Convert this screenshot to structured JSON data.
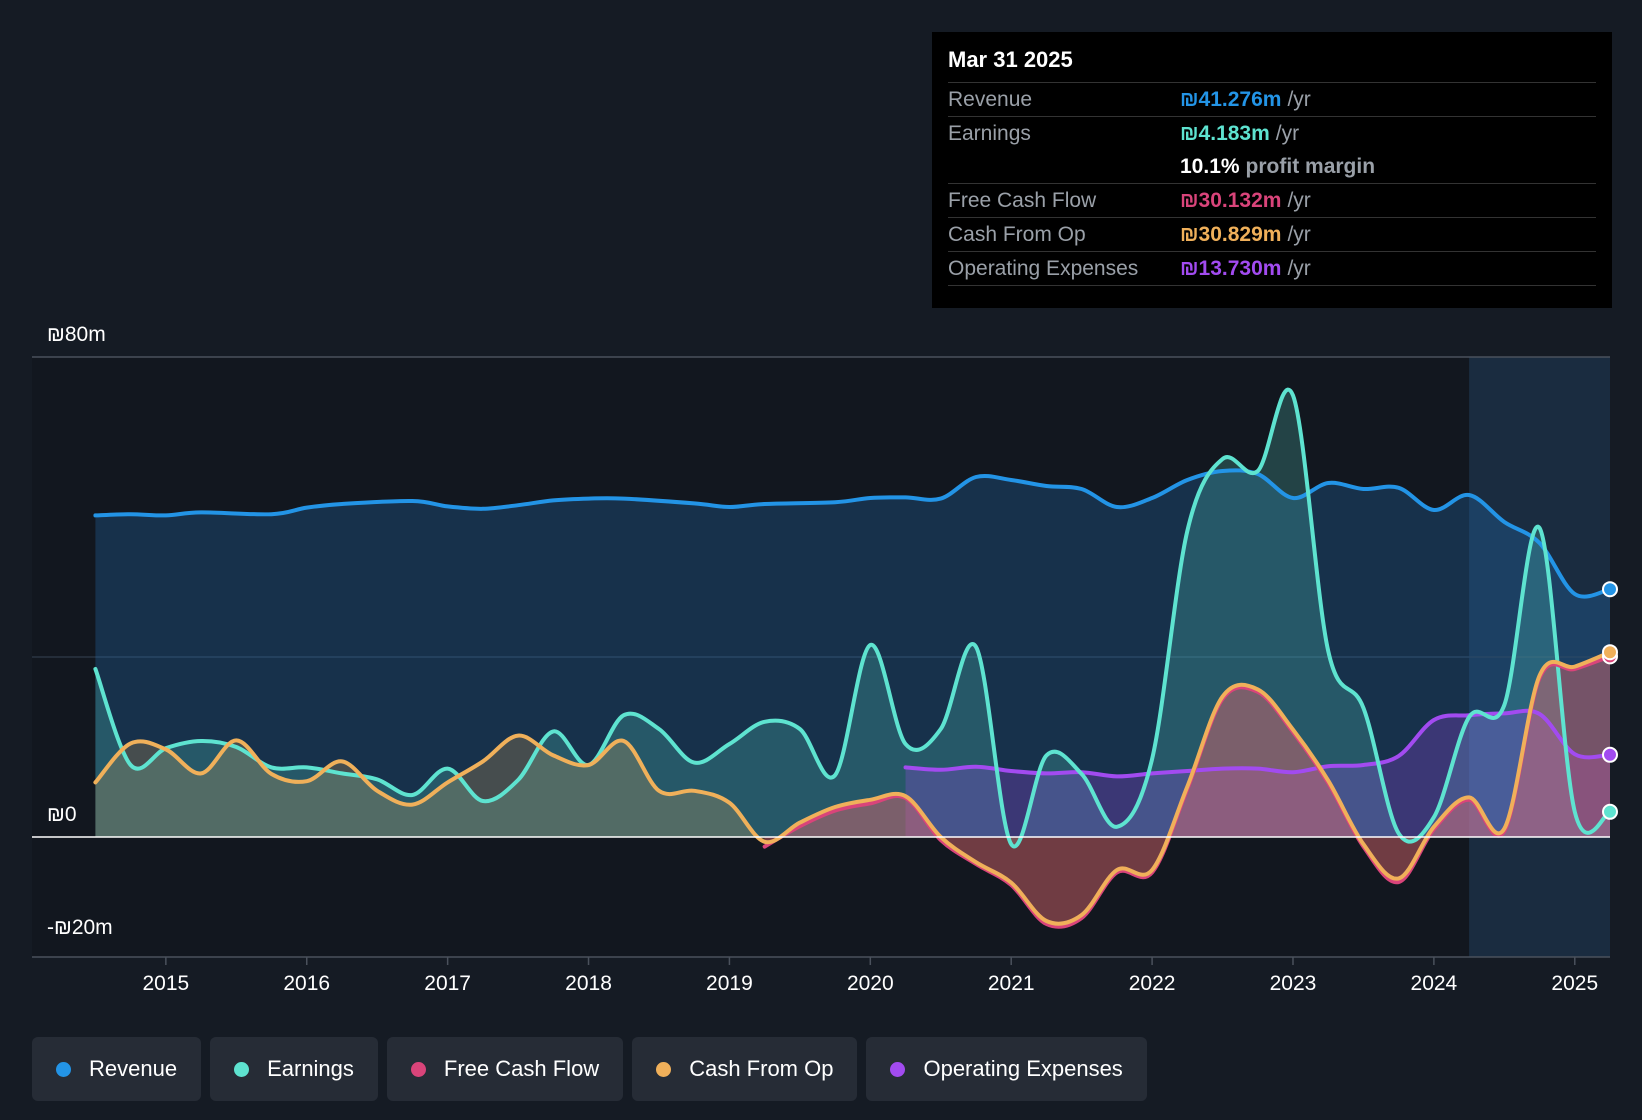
{
  "tooltip": {
    "date": "Mar 31 2025",
    "revenue_label": "Revenue",
    "revenue_value": "₪41.276m",
    "earnings_label": "Earnings",
    "earnings_value": "₪4.183m",
    "margin_value": "10.1%",
    "margin_label": "profit margin",
    "fcf_label": "Free Cash Flow",
    "fcf_value": "₪30.132m",
    "cfo_label": "Cash From Op",
    "cfo_value": "₪30.829m",
    "opex_label": "Operating Expenses",
    "opex_value": "₪13.730m",
    "unit": "/yr"
  },
  "legend": {
    "revenue": "Revenue",
    "earnings": "Earnings",
    "fcf": "Free Cash Flow",
    "cfo": "Cash From Op",
    "opex": "Operating Expenses"
  },
  "colors": {
    "revenue": "#2394e6",
    "earnings": "#5ee3d0",
    "fcf": "#d9447a",
    "cfo": "#f0b05a",
    "opex": "#a24bf0"
  },
  "chart_data": {
    "type": "line",
    "title": "",
    "ylim": [
      -20,
      80
    ],
    "y_tick_labels": [
      "₪80m",
      "₪0",
      "-₪20m"
    ],
    "x_tick_labels": [
      "2015",
      "2016",
      "2017",
      "2018",
      "2019",
      "2020",
      "2021",
      "2022",
      "2023",
      "2024",
      "2025"
    ],
    "xlim": [
      2014.05,
      2025.25
    ],
    "forecast_start": 2024.25,
    "series": [
      {
        "key": "revenue",
        "name": "Revenue",
        "color": "#2394e6",
        "points": [
          [
            2014.5,
            53.6
          ],
          [
            2014.75,
            53.8
          ],
          [
            2015.0,
            53.6
          ],
          [
            2015.25,
            54.1
          ],
          [
            2015.75,
            53.8
          ],
          [
            2016.0,
            54.9
          ],
          [
            2016.25,
            55.5
          ],
          [
            2016.75,
            56
          ],
          [
            2017.0,
            55.1
          ],
          [
            2017.25,
            54.7
          ],
          [
            2017.5,
            55.3
          ],
          [
            2017.75,
            56.1
          ],
          [
            2018.0,
            56.4
          ],
          [
            2018.25,
            56.4
          ],
          [
            2018.75,
            55.6
          ],
          [
            2019.0,
            55
          ],
          [
            2019.25,
            55.5
          ],
          [
            2019.75,
            55.8
          ],
          [
            2020.0,
            56.5
          ],
          [
            2020.25,
            56.6
          ],
          [
            2020.5,
            56.4
          ],
          [
            2020.75,
            60
          ],
          [
            2021.0,
            59.5
          ],
          [
            2021.25,
            58.5
          ],
          [
            2021.5,
            58
          ],
          [
            2021.75,
            55
          ],
          [
            2022.0,
            56.5
          ],
          [
            2022.25,
            59.5
          ],
          [
            2022.5,
            61
          ],
          [
            2022.75,
            60.5
          ],
          [
            2023.0,
            56.5
          ],
          [
            2023.25,
            59
          ],
          [
            2023.5,
            58
          ],
          [
            2023.75,
            58.2
          ],
          [
            2024.0,
            54.5
          ],
          [
            2024.25,
            57
          ],
          [
            2024.5,
            52.5
          ],
          [
            2024.75,
            49
          ],
          [
            2025.0,
            40.5
          ],
          [
            2025.25,
            41.3
          ]
        ]
      },
      {
        "key": "earnings",
        "name": "Earnings",
        "color": "#5ee3d0",
        "points": [
          [
            2014.5,
            28
          ],
          [
            2014.75,
            12
          ],
          [
            2015.0,
            14.8
          ],
          [
            2015.25,
            16
          ],
          [
            2015.5,
            15
          ],
          [
            2015.75,
            11.6
          ],
          [
            2016.0,
            11.6
          ],
          [
            2016.25,
            10.6
          ],
          [
            2016.5,
            9.6
          ],
          [
            2016.75,
            7
          ],
          [
            2017.0,
            11.4
          ],
          [
            2017.25,
            6
          ],
          [
            2017.5,
            9.5
          ],
          [
            2017.75,
            17.6
          ],
          [
            2018.0,
            12
          ],
          [
            2018.25,
            20.3
          ],
          [
            2018.5,
            18
          ],
          [
            2018.75,
            12.4
          ],
          [
            2019.0,
            15.5
          ],
          [
            2019.25,
            19.2
          ],
          [
            2019.5,
            18
          ],
          [
            2019.75,
            10.3
          ],
          [
            2020.0,
            32
          ],
          [
            2020.25,
            15.5
          ],
          [
            2020.5,
            18
          ],
          [
            2020.75,
            31.7
          ],
          [
            2021.0,
            -1.2
          ],
          [
            2021.25,
            13.6
          ],
          [
            2021.5,
            10.5
          ],
          [
            2021.75,
            1.7
          ],
          [
            2022.0,
            13
          ],
          [
            2022.25,
            51
          ],
          [
            2022.5,
            63
          ],
          [
            2022.75,
            61
          ],
          [
            2023.0,
            73.6
          ],
          [
            2023.25,
            31
          ],
          [
            2023.5,
            21.5
          ],
          [
            2023.75,
            0.6
          ],
          [
            2024.0,
            3.3
          ],
          [
            2024.25,
            20
          ],
          [
            2024.5,
            22
          ],
          [
            2024.75,
            51.5
          ],
          [
            2025.0,
            4.2
          ],
          [
            2025.25,
            4.2
          ]
        ]
      },
      {
        "key": "fcf",
        "name": "Free Cash Flow",
        "color": "#d9447a",
        "points": [
          [
            2019.25,
            -1.6
          ],
          [
            2019.5,
            1.8
          ],
          [
            2019.75,
            4.4
          ],
          [
            2020.0,
            5.6
          ],
          [
            2020.25,
            6.5
          ],
          [
            2020.5,
            -0.5
          ],
          [
            2020.75,
            -4.5
          ],
          [
            2021.0,
            -8
          ],
          [
            2021.25,
            -14.5
          ],
          [
            2021.5,
            -13.5
          ],
          [
            2021.75,
            -5.9
          ],
          [
            2022.0,
            -5.9
          ],
          [
            2022.25,
            8
          ],
          [
            2022.5,
            23
          ],
          [
            2022.75,
            24.2
          ],
          [
            2023.0,
            17.5
          ],
          [
            2023.25,
            9
          ],
          [
            2023.5,
            -1.6
          ],
          [
            2023.75,
            -7.5
          ],
          [
            2024.0,
            1.3
          ],
          [
            2024.25,
            6.2
          ],
          [
            2024.5,
            1
          ],
          [
            2024.75,
            26.5
          ],
          [
            2025.0,
            28
          ],
          [
            2025.25,
            30.1
          ]
        ]
      },
      {
        "key": "cfo",
        "name": "Cash From Op",
        "color": "#f0b05a",
        "points": [
          [
            2014.5,
            9.1
          ],
          [
            2014.75,
            15.6
          ],
          [
            2015.0,
            14.6
          ],
          [
            2015.25,
            10.6
          ],
          [
            2015.5,
            16.1
          ],
          [
            2015.75,
            10.5
          ],
          [
            2016.0,
            9.3
          ],
          [
            2016.25,
            12.6
          ],
          [
            2016.5,
            7.7
          ],
          [
            2016.75,
            5.4
          ],
          [
            2017.0,
            9.1
          ],
          [
            2017.25,
            12.6
          ],
          [
            2017.5,
            16.9
          ],
          [
            2017.75,
            13.6
          ],
          [
            2018.0,
            12
          ],
          [
            2018.25,
            16
          ],
          [
            2018.5,
            7.7
          ],
          [
            2018.75,
            7.7
          ],
          [
            2019.0,
            5.7
          ],
          [
            2019.25,
            -0.8
          ],
          [
            2019.5,
            2.4
          ],
          [
            2019.75,
            5
          ],
          [
            2020.0,
            6.2
          ],
          [
            2020.25,
            6.8
          ],
          [
            2020.5,
            0
          ],
          [
            2020.75,
            -4.2
          ],
          [
            2021.0,
            -7.6
          ],
          [
            2021.25,
            -14
          ],
          [
            2021.5,
            -13
          ],
          [
            2021.75,
            -5.5
          ],
          [
            2022.0,
            -5.5
          ],
          [
            2022.25,
            8.4
          ],
          [
            2022.5,
            23.4
          ],
          [
            2022.75,
            24.6
          ],
          [
            2023.0,
            17.9
          ],
          [
            2023.25,
            9.4
          ],
          [
            2023.5,
            -1.2
          ],
          [
            2023.75,
            -6.9
          ],
          [
            2024.0,
            1.7
          ],
          [
            2024.25,
            6.6
          ],
          [
            2024.5,
            1.4
          ],
          [
            2024.75,
            26.9
          ],
          [
            2025.0,
            28.4
          ],
          [
            2025.25,
            30.8
          ]
        ]
      },
      {
        "key": "opex",
        "name": "Operating Expenses",
        "color": "#a24bf0",
        "points": [
          [
            2020.25,
            11.6
          ],
          [
            2020.5,
            11.2
          ],
          [
            2020.75,
            11.7
          ],
          [
            2021.0,
            11
          ],
          [
            2021.25,
            10.6
          ],
          [
            2021.5,
            10.8
          ],
          [
            2021.75,
            10.1
          ],
          [
            2022.0,
            10.6
          ],
          [
            2022.25,
            11
          ],
          [
            2022.5,
            11.4
          ],
          [
            2022.75,
            11.4
          ],
          [
            2023.0,
            10.8
          ],
          [
            2023.25,
            11.8
          ],
          [
            2023.5,
            12
          ],
          [
            2023.75,
            13.5
          ],
          [
            2024.0,
            19.5
          ],
          [
            2024.25,
            20.3
          ],
          [
            2024.5,
            20.6
          ],
          [
            2024.75,
            20.5
          ],
          [
            2025.0,
            13.8
          ],
          [
            2025.25,
            13.7
          ]
        ]
      }
    ]
  }
}
